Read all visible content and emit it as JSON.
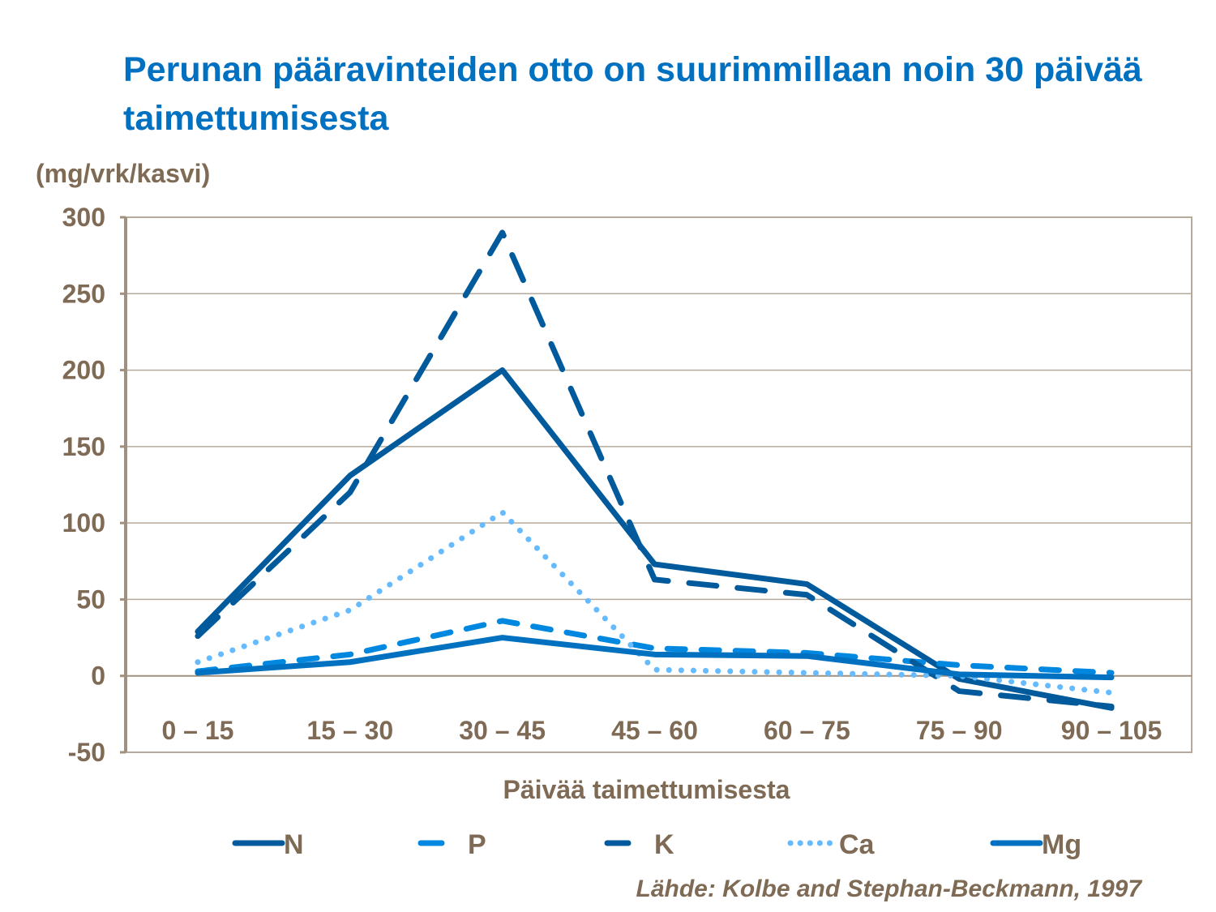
{
  "chart_data": {
    "type": "line",
    "title": "Perunan pääravinteiden otto on suurimmillaan noin 30 päivää taimettumisesta",
    "ylabel": "(mg/vrk/kasvi)",
    "xlabel": "Päivää taimettumisesta",
    "source": "Lähde: Kolbe and Stephan-Beckmann, 1997",
    "categories": [
      "0 – 15",
      "15 – 30",
      "30 – 45",
      "45 – 60",
      "60 – 75",
      "75 – 90",
      "90 – 105"
    ],
    "ylim": [
      -50,
      300
    ],
    "yticks": [
      300,
      250,
      200,
      150,
      100,
      50,
      0,
      -50
    ],
    "grid": true,
    "legend": "bottom",
    "series": [
      {
        "name": "N",
        "color": "#005a9c",
        "style": "solid",
        "values": [
          29,
          131,
          200,
          73,
          60,
          -2,
          -21
        ]
      },
      {
        "name": "P",
        "color": "#0088e0",
        "style": "dash",
        "values": [
          3,
          14,
          36,
          18,
          15,
          7,
          2
        ]
      },
      {
        "name": "K",
        "color": "#005a9c",
        "style": "longdash",
        "values": [
          26,
          120,
          290,
          63,
          53,
          -10,
          -20
        ]
      },
      {
        "name": "Ca",
        "color": "#66bbff",
        "style": "dot",
        "values": [
          9,
          43,
          107,
          4,
          2,
          0,
          -11
        ]
      },
      {
        "name": "Mg",
        "color": "#0070c0",
        "style": "solid",
        "values": [
          2,
          9,
          25,
          14,
          13,
          1,
          -1
        ]
      }
    ]
  }
}
